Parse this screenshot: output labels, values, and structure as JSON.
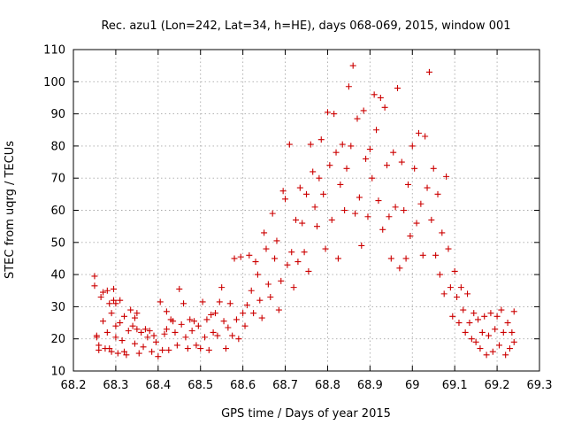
{
  "chart_data": {
    "type": "scatter",
    "title": "Rec. azu1 (Lon=242, Lat=34, h=HE), days 068-069, 2015, window 001",
    "xlabel": "GPS time / Days of year 2015",
    "ylabel": "STEC from uqrg / TECUs",
    "xlim": [
      68.2,
      69.3
    ],
    "ylim": [
      10,
      110
    ],
    "x_ticks": [
      68.2,
      68.3,
      68.4,
      68.5,
      68.6,
      68.7,
      68.8,
      68.9,
      69.0,
      69.1,
      69.2,
      69.3
    ],
    "x_tick_labels": [
      "68.2",
      "68.3",
      "68.4",
      "68.5",
      "68.6",
      "68.7",
      "68.8",
      "68.9",
      "69",
      "69.1",
      "69.2",
      "69.3"
    ],
    "y_ticks": [
      10,
      20,
      30,
      40,
      50,
      60,
      70,
      80,
      90,
      100,
      110
    ],
    "y_tick_labels": [
      "10",
      "20",
      "30",
      "40",
      "50",
      "60",
      "70",
      "80",
      "90",
      "100",
      "110"
    ],
    "grid": true,
    "marker": "+",
    "color": "#cc0000",
    "points": [
      [
        68.25,
        39.5
      ],
      [
        68.25,
        36.5
      ],
      [
        68.255,
        21
      ],
      [
        68.255,
        20.5
      ],
      [
        68.26,
        18
      ],
      [
        68.26,
        16.5
      ],
      [
        68.265,
        33
      ],
      [
        68.27,
        34.5
      ],
      [
        68.27,
        25.5
      ],
      [
        68.275,
        17
      ],
      [
        68.28,
        35
      ],
      [
        68.28,
        22
      ],
      [
        68.285,
        31
      ],
      [
        68.285,
        17
      ],
      [
        68.29,
        28
      ],
      [
        68.29,
        16
      ],
      [
        68.295,
        35.5
      ],
      [
        68.295,
        32
      ],
      [
        68.3,
        31
      ],
      [
        68.3,
        24
      ],
      [
        68.3,
        20.5
      ],
      [
        68.305,
        15.5
      ],
      [
        68.31,
        32
      ],
      [
        68.31,
        25
      ],
      [
        68.315,
        19.5
      ],
      [
        68.32,
        27
      ],
      [
        68.32,
        16
      ],
      [
        68.325,
        15
      ],
      [
        68.33,
        22.5
      ],
      [
        68.335,
        29
      ],
      [
        68.34,
        24
      ],
      [
        68.345,
        26.5
      ],
      [
        68.345,
        18.5
      ],
      [
        68.35,
        28
      ],
      [
        68.35,
        23
      ],
      [
        68.355,
        15.5
      ],
      [
        68.36,
        22
      ],
      [
        68.365,
        17.5
      ],
      [
        68.37,
        23
      ],
      [
        68.375,
        20.5
      ],
      [
        68.38,
        22.5
      ],
      [
        68.385,
        16
      ],
      [
        68.39,
        21
      ],
      [
        68.395,
        19
      ],
      [
        68.4,
        14.5
      ],
      [
        68.405,
        31.5
      ],
      [
        68.41,
        16.5
      ],
      [
        68.415,
        21.5
      ],
      [
        68.42,
        28.5
      ],
      [
        68.42,
        23
      ],
      [
        68.425,
        16.5
      ],
      [
        68.43,
        26
      ],
      [
        68.435,
        25.5
      ],
      [
        68.44,
        22
      ],
      [
        68.445,
        18
      ],
      [
        68.45,
        35.5
      ],
      [
        68.455,
        24.5
      ],
      [
        68.46,
        31
      ],
      [
        68.465,
        20.5
      ],
      [
        68.47,
        17
      ],
      [
        68.475,
        26
      ],
      [
        68.48,
        22.5
      ],
      [
        68.485,
        25.5
      ],
      [
        68.49,
        18
      ],
      [
        68.495,
        24
      ],
      [
        68.5,
        17
      ],
      [
        68.505,
        31.5
      ],
      [
        68.51,
        20.5
      ],
      [
        68.515,
        26
      ],
      [
        68.52,
        16.5
      ],
      [
        68.525,
        27.5
      ],
      [
        68.53,
        22
      ],
      [
        68.535,
        28
      ],
      [
        68.54,
        21
      ],
      [
        68.545,
        31.5
      ],
      [
        68.55,
        36
      ],
      [
        68.555,
        25.5
      ],
      [
        68.56,
        17
      ],
      [
        68.565,
        23.5
      ],
      [
        68.57,
        31
      ],
      [
        68.575,
        21
      ],
      [
        68.58,
        45
      ],
      [
        68.585,
        26
      ],
      [
        68.59,
        20
      ],
      [
        68.595,
        45.5
      ],
      [
        68.6,
        28
      ],
      [
        68.605,
        24
      ],
      [
        68.61,
        30.5
      ],
      [
        68.615,
        46
      ],
      [
        68.62,
        35
      ],
      [
        68.625,
        28
      ],
      [
        68.63,
        44
      ],
      [
        68.635,
        40
      ],
      [
        68.64,
        32
      ],
      [
        68.645,
        26.5
      ],
      [
        68.65,
        53
      ],
      [
        68.655,
        48
      ],
      [
        68.66,
        37
      ],
      [
        68.665,
        33
      ],
      [
        68.67,
        59
      ],
      [
        68.675,
        45
      ],
      [
        68.68,
        50.5
      ],
      [
        68.685,
        29
      ],
      [
        68.69,
        38
      ],
      [
        68.695,
        66
      ],
      [
        68.7,
        63.5
      ],
      [
        68.705,
        43
      ],
      [
        68.71,
        80.5
      ],
      [
        68.715,
        47
      ],
      [
        68.72,
        36
      ],
      [
        68.725,
        57
      ],
      [
        68.73,
        44
      ],
      [
        68.735,
        67
      ],
      [
        68.74,
        56
      ],
      [
        68.745,
        47
      ],
      [
        68.75,
        65
      ],
      [
        68.755,
        41
      ],
      [
        68.76,
        80.5
      ],
      [
        68.765,
        72
      ],
      [
        68.77,
        61
      ],
      [
        68.775,
        55
      ],
      [
        68.78,
        70
      ],
      [
        68.785,
        82
      ],
      [
        68.79,
        65
      ],
      [
        68.795,
        48
      ],
      [
        68.8,
        90.5
      ],
      [
        68.805,
        74
      ],
      [
        68.81,
        57
      ],
      [
        68.815,
        90
      ],
      [
        68.82,
        78
      ],
      [
        68.825,
        45
      ],
      [
        68.83,
        68
      ],
      [
        68.835,
        80.5
      ],
      [
        68.84,
        60
      ],
      [
        68.845,
        73
      ],
      [
        68.85,
        98.5
      ],
      [
        68.855,
        80
      ],
      [
        68.86,
        105
      ],
      [
        68.865,
        59
      ],
      [
        68.87,
        88.5
      ],
      [
        68.875,
        64
      ],
      [
        68.88,
        49
      ],
      [
        68.885,
        91
      ],
      [
        68.89,
        76
      ],
      [
        68.895,
        58
      ],
      [
        68.9,
        79
      ],
      [
        68.905,
        70
      ],
      [
        68.91,
        96
      ],
      [
        68.915,
        85
      ],
      [
        68.92,
        63
      ],
      [
        68.925,
        95
      ],
      [
        68.93,
        54
      ],
      [
        68.935,
        92
      ],
      [
        68.94,
        74
      ],
      [
        68.945,
        58
      ],
      [
        68.95,
        45
      ],
      [
        68.955,
        78
      ],
      [
        68.96,
        61
      ],
      [
        68.965,
        98
      ],
      [
        68.97,
        42
      ],
      [
        68.975,
        75
      ],
      [
        68.98,
        60
      ],
      [
        68.985,
        45
      ],
      [
        68.99,
        68
      ],
      [
        68.995,
        52
      ],
      [
        69.0,
        80
      ],
      [
        69.005,
        73
      ],
      [
        69.01,
        56
      ],
      [
        69.015,
        84
      ],
      [
        69.02,
        62
      ],
      [
        69.025,
        46
      ],
      [
        69.03,
        83
      ],
      [
        69.035,
        67
      ],
      [
        69.04,
        103
      ],
      [
        69.045,
        57
      ],
      [
        69.05,
        73
      ],
      [
        69.055,
        46
      ],
      [
        69.06,
        65
      ],
      [
        69.065,
        40
      ],
      [
        69.07,
        53
      ],
      [
        69.075,
        34
      ],
      [
        69.08,
        70.5
      ],
      [
        69.085,
        48
      ],
      [
        69.09,
        36
      ],
      [
        69.095,
        27
      ],
      [
        69.1,
        41
      ],
      [
        69.105,
        33
      ],
      [
        69.11,
        25
      ],
      [
        69.115,
        36
      ],
      [
        69.12,
        29
      ],
      [
        69.125,
        22
      ],
      [
        69.13,
        34
      ],
      [
        69.135,
        25
      ],
      [
        69.14,
        20
      ],
      [
        69.145,
        28
      ],
      [
        69.15,
        19
      ],
      [
        69.155,
        26
      ],
      [
        69.16,
        17
      ],
      [
        69.165,
        22
      ],
      [
        69.17,
        27
      ],
      [
        69.175,
        15
      ],
      [
        69.18,
        21
      ],
      [
        69.185,
        28
      ],
      [
        69.19,
        16
      ],
      [
        69.195,
        23
      ],
      [
        69.2,
        27
      ],
      [
        69.205,
        18
      ],
      [
        69.21,
        29
      ],
      [
        69.215,
        22
      ],
      [
        69.22,
        15
      ],
      [
        69.225,
        25
      ],
      [
        69.23,
        17
      ],
      [
        69.235,
        22
      ],
      [
        69.24,
        28.5
      ],
      [
        69.24,
        19
      ]
    ]
  }
}
